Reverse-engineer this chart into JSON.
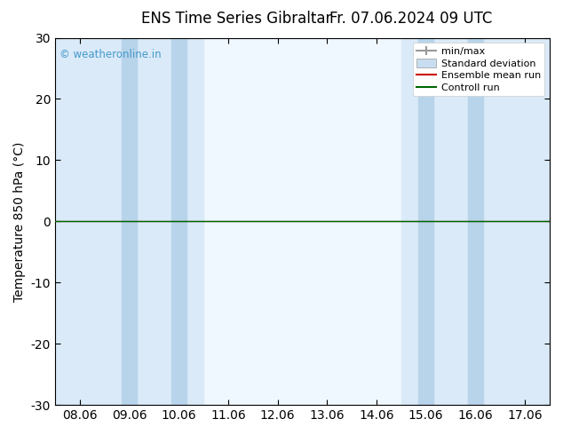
{
  "title": "ENS Time Series Gibraltar",
  "title2": "Fr. 07.06.2024 09 UTC",
  "ylabel": "Temperature 850 hPa (°C)",
  "ylim": [
    -30,
    30
  ],
  "yticks": [
    -30,
    -20,
    -10,
    0,
    10,
    20,
    30
  ],
  "xtick_labels": [
    "08.06",
    "09.06",
    "10.06",
    "11.06",
    "12.06",
    "13.06",
    "14.06",
    "15.06",
    "16.06",
    "17.06"
  ],
  "background_color": "#ffffff",
  "plot_bg_color": "#ffffff",
  "shaded_col_light": [
    0,
    2,
    5,
    7,
    9
  ],
  "shaded_col_dark": [
    1,
    6,
    8
  ],
  "shaded_light_color": "#daeaf8",
  "shaded_dark_color": "#c5dcee",
  "zero_line_color": "#000000",
  "green_line_color": "#006600",
  "red_line_color": "#cc0000",
  "watermark_text": "© weatheronline.in",
  "watermark_color": "#4499cc",
  "legend_labels": [
    "min/max",
    "Standard deviation",
    "Ensemble mean run",
    "Controll run"
  ],
  "legend_minmax_color": "#999999",
  "legend_std_color": "#c8ddf0",
  "legend_ens_color": "#cc0000",
  "legend_ctrl_color": "#006600",
  "font_size": 10,
  "title_font_size": 12
}
